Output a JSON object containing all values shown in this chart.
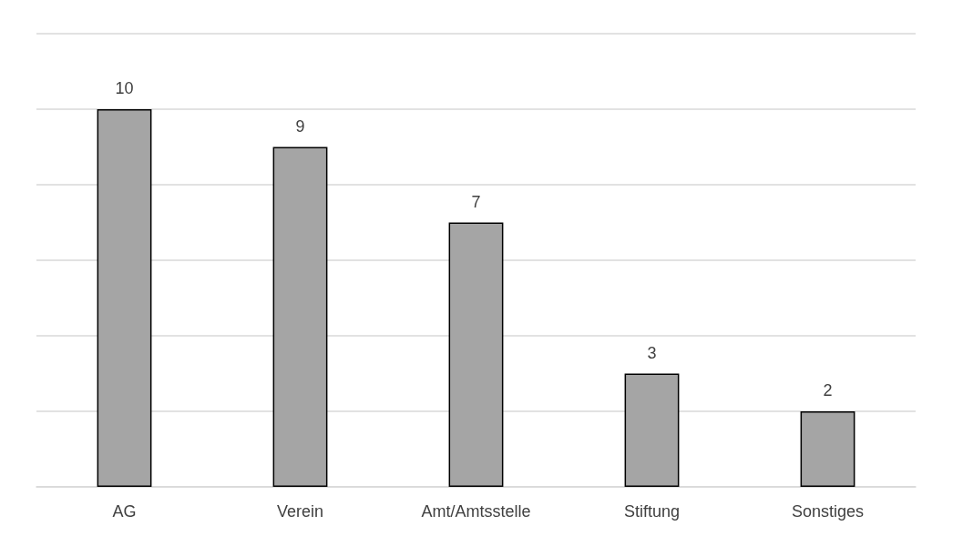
{
  "chart_data": {
    "type": "bar",
    "categories": [
      "AG",
      "Verein",
      "Amt/Amtsstelle",
      "Stiftung",
      "Sonstiges"
    ],
    "values": [
      10,
      9,
      7,
      3,
      2
    ],
    "color": "#a5a5a5",
    "ylim": [
      0,
      12
    ],
    "yticks": [
      {
        "value": 0,
        "label": null
      },
      {
        "value": 2,
        "label": null
      },
      {
        "value": 4,
        "label": null
      },
      {
        "value": 6,
        "label": null
      },
      {
        "value": 8,
        "label": null
      },
      {
        "value": 10,
        "label": null
      },
      {
        "value": 12,
        "label": null
      }
    ],
    "grid": "y",
    "tick_labels": "x",
    "data_labels": true
  }
}
